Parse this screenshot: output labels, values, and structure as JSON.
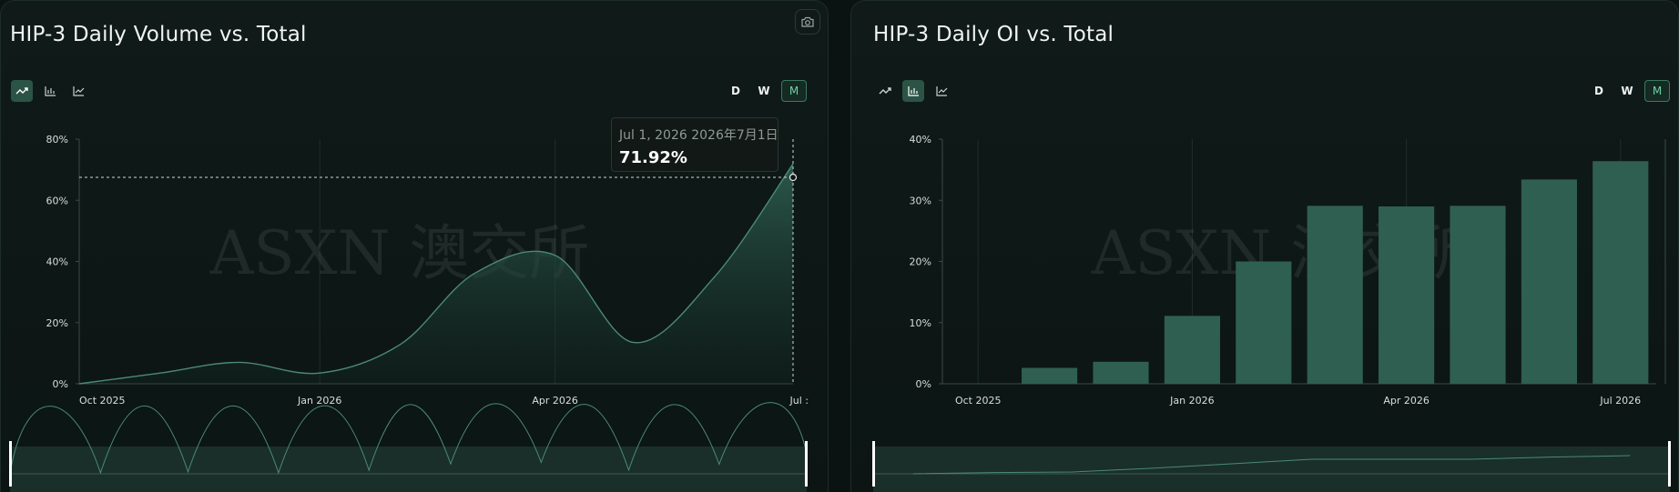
{
  "watermark": "ASXN  澳交所",
  "colors": {
    "accent": "#2f5f50",
    "accent_line": "#4a8a74",
    "active_toggle": "#2c5446",
    "active_period": "#6fd0a4",
    "background": "#0b1312"
  },
  "left_panel": {
    "title": "HIP-3 Daily Volume vs. Total",
    "chart_type_icons": [
      "trending-up-icon",
      "bar-chart-icon",
      "line-chart-icon"
    ],
    "active_chart_type": "trending-up-icon",
    "periods": [
      "D",
      "W",
      "M"
    ],
    "active_period": "M",
    "tooltip": {
      "date": "Jul 1, 2026  2026年7月1日",
      "value": "71.92%"
    }
  },
  "right_panel": {
    "title": "HIP-3 Daily OI vs. Total",
    "chart_type_icons": [
      "trending-up-icon",
      "bar-chart-icon",
      "line-chart-icon"
    ],
    "active_chart_type": "bar-chart-icon",
    "periods": [
      "D",
      "W",
      "M"
    ],
    "active_period": "M"
  },
  "chart_data": [
    {
      "type": "area",
      "title": "HIP-3 Daily Volume vs. Total",
      "x": [
        "2025-10-01",
        "2025-11-01",
        "2025-12-01",
        "2026-01-01",
        "2026-02-01",
        "2026-03-01",
        "2026-04-01",
        "2026-05-01",
        "2026-06-01",
        "2026-07-01"
      ],
      "series": [
        {
          "values": [
            0.0,
            3.5,
            7.0,
            3.5,
            13.0,
            36.0,
            42.0,
            13.5,
            35.0,
            71.92
          ]
        }
      ],
      "x_tick_labels": [
        "Oct 2025",
        "Jan 2026",
        "Apr 2026",
        "Jul 2026"
      ],
      "x_tick_labels_shown": [
        "Oct 2025",
        "Jan 2026",
        "Apr 2026",
        "Jul :"
      ],
      "y_tick_labels": [
        "0%",
        "20%",
        "40%",
        "60%",
        "80%"
      ],
      "ylim": [
        0,
        80
      ],
      "grid": "vertical",
      "crosshair_value": 67.5
    },
    {
      "type": "bar",
      "title": "HIP-3 Daily OI vs. Total",
      "x": [
        "2025-10-01",
        "2025-11-01",
        "2025-12-01",
        "2026-01-01",
        "2026-02-01",
        "2026-03-01",
        "2026-04-01",
        "2026-05-01",
        "2026-06-01",
        "2026-07-01"
      ],
      "values": [
        0.0,
        2.6,
        3.6,
        11.1,
        20.0,
        29.1,
        29.0,
        29.1,
        33.4,
        36.4
      ],
      "x_tick_labels": [
        "Oct 2025",
        "Jan 2026",
        "Apr 2026",
        "Jul 2026"
      ],
      "y_tick_labels": [
        "0%",
        "10%",
        "20%",
        "30%",
        "40%"
      ],
      "ylim": [
        0,
        40
      ],
      "grid": "vertical"
    }
  ]
}
